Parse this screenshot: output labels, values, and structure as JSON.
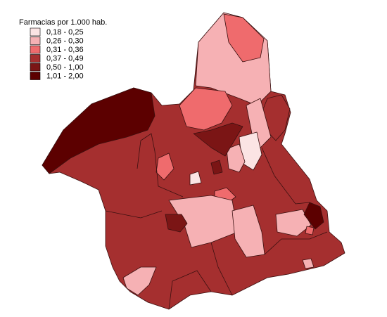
{
  "legend": {
    "title": "Farmacias por 1.000 hab.",
    "items": [
      {
        "label": "0,18 - 0,25",
        "color": "#fbe4e4"
      },
      {
        "label": "0,26 - 0,30",
        "color": "#f6b1b4"
      },
      {
        "label": "0,31 - 0,36",
        "color": "#ef6b6d"
      },
      {
        "label": "0,37 - 0,49",
        "color": "#a52f2f"
      },
      {
        "label": "0,50 - 1,00",
        "color": "#7b1515"
      },
      {
        "label": "1,01 - 2,00",
        "color": "#5c0000"
      }
    ]
  }
}
